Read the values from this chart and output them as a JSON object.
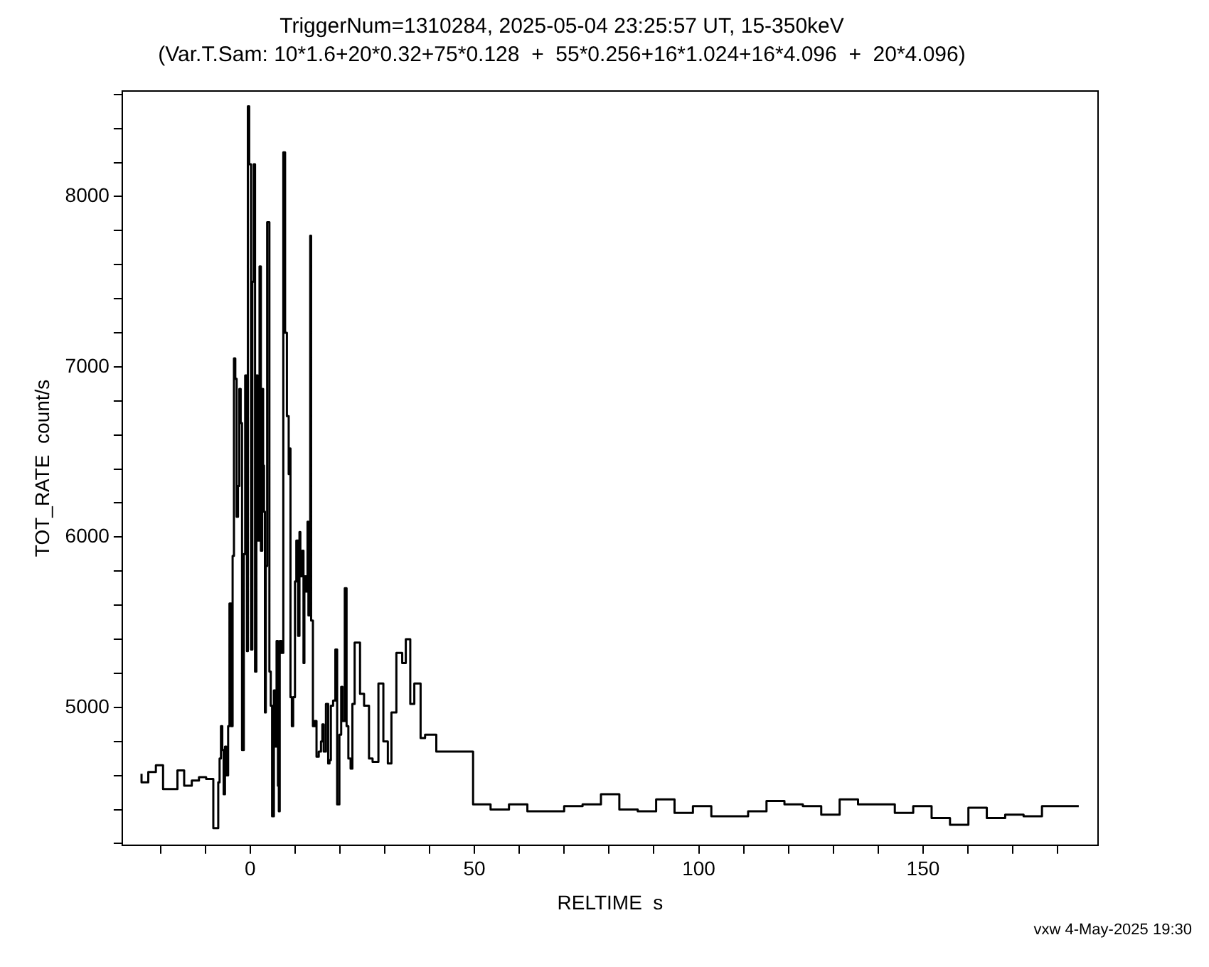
{
  "chart_data": {
    "type": "step",
    "title": "TriggerNum=1310284, 2025-05-04 23:25:57 UT, 15-350keV",
    "subtitle": "(Var.T.Sam: 10*1.6+20*0.32+75*0.128  +  55*0.256+16*1.024+16*4.096  +  20*4.096)",
    "xlabel": "RELTIME  s",
    "ylabel": "TOT_RATE  count/s",
    "annotations": [
      "vxw  4-May-2025 19:30"
    ],
    "x": [
      -24.2,
      -22.7,
      -21,
      -19.4,
      -17.6,
      -16.2,
      -14.7,
      -13,
      -11.4,
      -9.8,
      -8.2,
      -7.1,
      -6.8,
      -6.5,
      -6.2,
      -5.9,
      -5.6,
      -5.3,
      -4.9,
      -4.6,
      -4.2,
      -3.9,
      -3.6,
      -3.3,
      -3,
      -2.7,
      -2.4,
      -2.1,
      -1.8,
      -1.4,
      -1.1,
      -0.7,
      -0.5,
      -0.2,
      0.2,
      0.5,
      0.8,
      1.1,
      1.4,
      1.7,
      2.1,
      2.4,
      2.7,
      2.9,
      3.1,
      3.3,
      3.5,
      3.8,
      4.3,
      4.6,
      4.9,
      5.3,
      5.6,
      5.9,
      6.2,
      6.4,
      6.6,
      7,
      7.4,
      7.8,
      8.2,
      8.6,
      8.8,
      9,
      9.3,
      9.6,
      10,
      10.3,
      10.7,
      11,
      11.2,
      11.6,
      11.9,
      12.1,
      12.5,
      12.8,
      13,
      13.2,
      13.4,
      13.6,
      14,
      14.4,
      14.8,
      15.3,
      15.8,
      16.1,
      16.4,
      16.9,
      17.4,
      17.7,
      18,
      18.5,
      19,
      19.4,
      19.9,
      20.3,
      20.6,
      21.1,
      21.5,
      21.9,
      22.4,
      22.8,
      23.3,
      24.5,
      25.4,
      26.5,
      27.3,
      28.6,
      29.7,
      30.7,
      31.5,
      32.6,
      33.9,
      34.7,
      35.7,
      36.6,
      38,
      39,
      41.5,
      49.7,
      53.6,
      57.7,
      61.8,
      65.9,
      70,
      74.1,
      78.2,
      82.3,
      86.4,
      90.5,
      94.6,
      98.7,
      102.8,
      106.9,
      111,
      115.1,
      119.1,
      123.2,
      127.3,
      131.4,
      135.5,
      139.6,
      143.7,
      147.8,
      151.9,
      156,
      160.1,
      164.2,
      168.3,
      172.4,
      176.5,
      180.6,
      184.7
    ],
    "values": [
      4610,
      4560,
      4620,
      4660,
      4520,
      4520,
      4630,
      4540,
      4570,
      4590,
      4580,
      4290,
      4560,
      4700,
      4890,
      4750,
      4490,
      4770,
      4600,
      4890,
      5610,
      4890,
      5890,
      7050,
      6930,
      6120,
      6300,
      6870,
      6670,
      4750,
      5900,
      6950,
      5330,
      8530,
      8190,
      5340,
      7500,
      8190,
      5210,
      6950,
      5980,
      7590,
      5920,
      6870,
      6420,
      6150,
      4970,
      5830,
      7850,
      5210,
      5010,
      4360,
      5100,
      4770,
      5390,
      4540,
      4390,
      5390,
      5320,
      8260,
      7200,
      6710,
      6370,
      6520,
      5060,
      4890,
      5060,
      5740,
      5980,
      5420,
      6030,
      5770,
      5920,
      5260,
      5770,
      5680,
      6090,
      5540,
      6050,
      7770,
      5510,
      4890,
      4920,
      4710,
      4740,
      4800,
      4900,
      4740,
      5020,
      4670,
      4690,
      5010,
      5040,
      5340,
      4430,
      4840,
      5120,
      4920,
      5700,
      4890,
      4700,
      4640,
      5020,
      5380,
      5080,
      5010,
      4700,
      4680,
      5140,
      4800,
      4670,
      4970,
      5320,
      5260,
      5400,
      5020,
      5140,
      4820,
      4840,
      4740,
      4430,
      4400,
      4430,
      4390,
      4390,
      4420,
      4430,
      4490,
      4400,
      4390,
      4460,
      4380,
      4420,
      4360,
      4360,
      4390,
      4450,
      4430,
      4420,
      4370,
      4460,
      4430,
      4430,
      4380,
      4420,
      4350,
      4310,
      4410,
      4350,
      4370,
      4360,
      4420,
      4420
    ],
    "color": "#000000",
    "xlim": [
      -28.5,
      189
    ],
    "ylim": [
      4190,
      8620
    ],
    "xticks": [
      {
        "value": -20,
        "label": null
      },
      {
        "value": -10,
        "label": null
      },
      0,
      {
        "value": 10,
        "label": null
      },
      {
        "value": 20,
        "label": null
      },
      {
        "value": 30,
        "label": null
      },
      {
        "value": 40,
        "label": null
      },
      50,
      {
        "value": 60,
        "label": null
      },
      {
        "value": 70,
        "label": null
      },
      {
        "value": 80,
        "label": null
      },
      {
        "value": 90,
        "label": null
      },
      100,
      {
        "value": 110,
        "label": null
      },
      {
        "value": 120,
        "label": null
      },
      {
        "value": 130,
        "label": null
      },
      {
        "value": 140,
        "label": null
      },
      150,
      {
        "value": 160,
        "label": null
      },
      {
        "value": 170,
        "label": null
      },
      {
        "value": 180,
        "label": null
      }
    ],
    "yticks": [
      {
        "value": 4200,
        "label": null
      },
      {
        "value": 4400,
        "label": null
      },
      {
        "value": 4600,
        "label": null
      },
      {
        "value": 4800,
        "label": null
      },
      5000,
      {
        "value": 5200,
        "label": null
      },
      {
        "value": 5400,
        "label": null
      },
      {
        "value": 5600,
        "label": null
      },
      {
        "value": 5800,
        "label": null
      },
      6000,
      {
        "value": 6200,
        "label": null
      },
      {
        "value": 6400,
        "label": null
      },
      {
        "value": 6600,
        "label": null
      },
      {
        "value": 6800,
        "label": null
      },
      7000,
      {
        "value": 7200,
        "label": null
      },
      {
        "value": 7400,
        "label": null
      },
      {
        "value": 7600,
        "label": null
      },
      {
        "value": 7800,
        "label": null
      },
      8000,
      {
        "value": 8200,
        "label": null
      },
      {
        "value": 8400,
        "label": null
      },
      {
        "value": 8600,
        "label": null
      }
    ],
    "grid": false,
    "legend": false,
    "marker": "none"
  }
}
